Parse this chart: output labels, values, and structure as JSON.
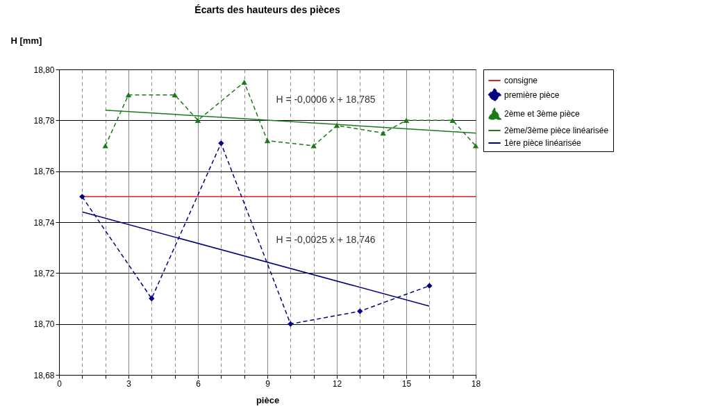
{
  "chart_data": {
    "type": "line",
    "title": "Écarts des hauteurs des pièces",
    "xlabel": "pièce",
    "ylabel": "H [mm]",
    "xlim": [
      0,
      18
    ],
    "ylim": [
      18.68,
      18.8
    ],
    "xticks": [
      0,
      {
        "value": 1,
        "label": null
      },
      {
        "value": 2,
        "label": null
      },
      3,
      {
        "value": 4,
        "label": null
      },
      {
        "value": 5,
        "label": null
      },
      6,
      {
        "value": 7,
        "label": null
      },
      {
        "value": 8,
        "label": null
      },
      9,
      {
        "value": 10,
        "label": null
      },
      {
        "value": 11,
        "label": null
      },
      12,
      {
        "value": 13,
        "label": null
      },
      {
        "value": 14,
        "label": null
      },
      15,
      {
        "value": 16,
        "label": null
      },
      {
        "value": 17,
        "label": null
      },
      18
    ],
    "yticks": [
      {
        "value": 18.68,
        "label": "18,68"
      },
      {
        "value": 18.7,
        "label": "18,70"
      },
      {
        "value": 18.72,
        "label": "18,72"
      },
      {
        "value": 18.74,
        "label": "18,74"
      },
      {
        "value": 18.76,
        "label": "18,76"
      },
      {
        "value": 18.78,
        "label": "18,78"
      },
      {
        "value": 18.8,
        "label": "18,80"
      }
    ],
    "grid": true,
    "legend": "right",
    "series": [
      {
        "name": "consigne",
        "color": "#e02020",
        "line_style": "solid",
        "x": [
          1,
          18
        ],
        "values": [
          18.75,
          18.75
        ]
      },
      {
        "name": "première pièce",
        "color": "#000080",
        "marker": "diamond",
        "line_style": "dashed",
        "x": [
          1,
          4,
          7,
          10,
          13,
          16
        ],
        "values": [
          18.75,
          18.71,
          18.771,
          18.7,
          18.705,
          18.715
        ]
      },
      {
        "name": "2ème et 3ème pièce",
        "color": "#1a7a1a",
        "marker": "triangle",
        "line_style": "dashed",
        "x": [
          2,
          3,
          5,
          6,
          8,
          9,
          11,
          12,
          14,
          15,
          17,
          18
        ],
        "values": [
          18.77,
          18.79,
          18.79,
          18.78,
          18.795,
          18.772,
          18.77,
          18.778,
          18.775,
          18.78,
          18.78,
          18.77
        ]
      },
      {
        "name": "2ème/3ème pièce linéarisée",
        "color": "#1a7a1a",
        "marker": "none",
        "line_style": "solid",
        "x": [
          2,
          18
        ],
        "values": [
          18.784,
          18.775
        ]
      },
      {
        "name": "1ère pièce linéarisée",
        "color": "#000080",
        "marker": "none",
        "line_style": "solid",
        "x": [
          1,
          16
        ],
        "values": [
          18.744,
          18.707
        ]
      }
    ],
    "annotations": [
      "H = -0,0006 x + 18,785",
      "H = -0,0025 x + 18,746"
    ]
  }
}
